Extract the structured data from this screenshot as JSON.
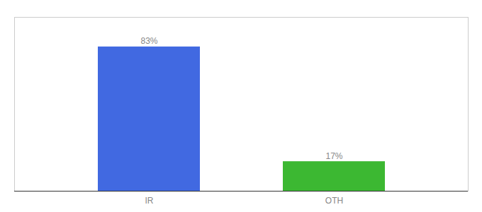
{
  "chart_data": {
    "type": "bar",
    "categories": [
      "IR",
      "OTH"
    ],
    "values": [
      83,
      17
    ],
    "value_labels": [
      "83%",
      "17%"
    ],
    "data_labels": true,
    "colors": [
      "#4169e1",
      "#3cb832"
    ],
    "ylim": [
      0,
      100
    ],
    "tick_labels": "x",
    "grid": false
  }
}
